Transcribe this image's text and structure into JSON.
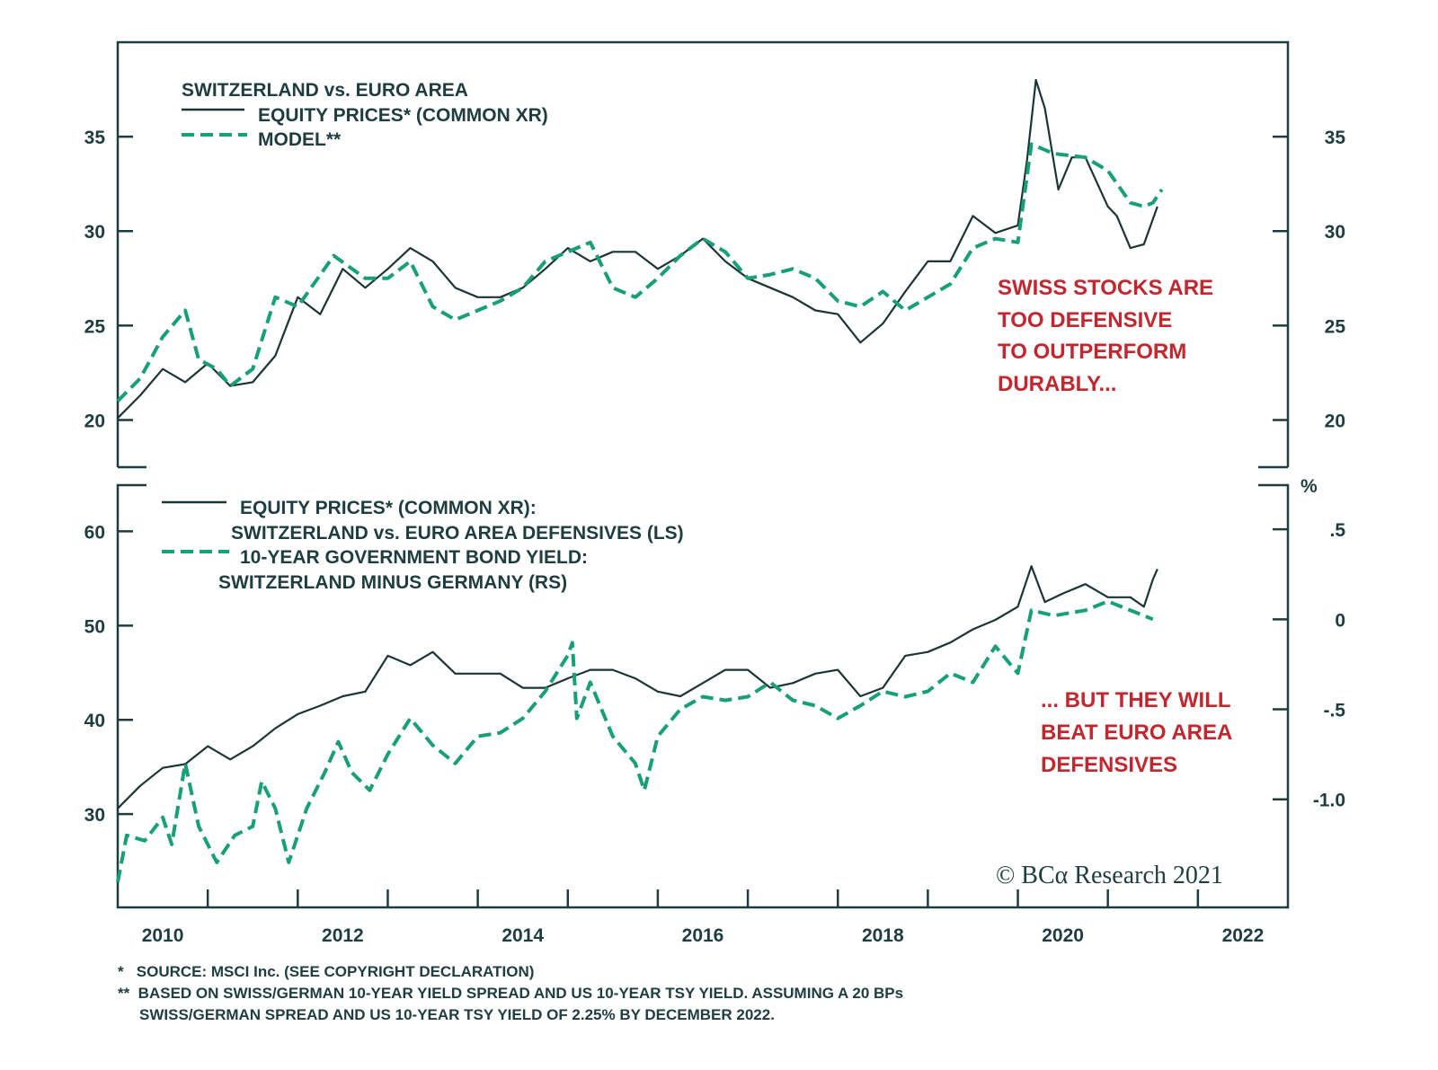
{
  "colors": {
    "axis": "#1e3d40",
    "equity": "#1b3436",
    "model": "#17a078",
    "annotation": "#c4262e"
  },
  "chart_data": [
    {
      "type": "line",
      "panel": "top",
      "legend_title": "SWITZERLAND vs. EURO AREA",
      "legend": [
        "EQUITY PRICES* (COMMON XR)",
        "MODEL**"
      ],
      "ylim": [
        17.5,
        40
      ],
      "yticks": [
        20,
        25,
        30,
        35
      ],
      "ytick_labels": [
        "20",
        "25",
        "30",
        "35"
      ],
      "annotation": [
        "SWISS STOCKS ARE",
        "TOO DEFENSIVE",
        "TO OUTPERFORM",
        "DURABLY..."
      ],
      "series": [
        {
          "name": "EQUITY PRICES* (COMMON XR)",
          "style": "solid",
          "axis": "left",
          "x": [
            2010.0,
            2010.25,
            2010.5,
            2010.75,
            2011.0,
            2011.25,
            2011.5,
            2011.75,
            2012.0,
            2012.25,
            2012.5,
            2012.75,
            2013.0,
            2013.25,
            2013.5,
            2013.75,
            2014.0,
            2014.25,
            2014.5,
            2014.75,
            2015.0,
            2015.25,
            2015.5,
            2015.75,
            2016.0,
            2016.25,
            2016.5,
            2016.75,
            2017.0,
            2017.25,
            2017.5,
            2017.75,
            2018.0,
            2018.25,
            2018.5,
            2018.75,
            2019.0,
            2019.25,
            2019.5,
            2019.75,
            2020.0,
            2020.1,
            2020.2,
            2020.3,
            2020.45,
            2020.6,
            2020.75,
            2021.0,
            2021.1,
            2021.25,
            2021.4,
            2021.55
          ],
          "y": [
            20.1,
            21.3,
            22.7,
            22.0,
            23.0,
            21.8,
            22.0,
            23.4,
            26.5,
            25.6,
            28.0,
            27.0,
            28.0,
            29.1,
            28.4,
            27.0,
            26.5,
            26.5,
            27.0,
            28.0,
            29.1,
            28.4,
            28.9,
            28.9,
            28.0,
            28.7,
            29.6,
            28.4,
            27.5,
            27.0,
            26.5,
            25.8,
            25.6,
            24.1,
            25.1,
            26.8,
            28.4,
            28.4,
            30.8,
            29.9,
            30.3,
            33.7,
            38.0,
            36.5,
            32.2,
            33.9,
            33.9,
            31.3,
            30.8,
            29.1,
            29.3,
            31.3
          ]
        },
        {
          "name": "MODEL**",
          "style": "dashed",
          "axis": "left",
          "x": [
            2010.0,
            2010.25,
            2010.5,
            2010.75,
            2010.9,
            2011.1,
            2011.25,
            2011.5,
            2011.75,
            2012.0,
            2012.4,
            2012.75,
            2013.0,
            2013.25,
            2013.5,
            2013.75,
            2014.0,
            2014.25,
            2014.5,
            2014.75,
            2015.0,
            2015.25,
            2015.5,
            2015.75,
            2016.0,
            2016.25,
            2016.5,
            2016.75,
            2017.0,
            2017.25,
            2017.5,
            2017.75,
            2018.0,
            2018.25,
            2018.5,
            2018.75,
            2019.0,
            2019.25,
            2019.5,
            2019.75,
            2020.0,
            2020.15,
            2020.4,
            2020.75,
            2021.0,
            2021.25,
            2021.4,
            2021.5,
            2021.6
          ],
          "y": [
            21.0,
            22.2,
            24.4,
            25.8,
            23.2,
            22.7,
            21.8,
            22.7,
            26.5,
            26.0,
            28.7,
            27.5,
            27.5,
            28.4,
            26.0,
            25.3,
            25.8,
            26.3,
            27.0,
            28.4,
            28.9,
            29.4,
            27.0,
            26.5,
            27.5,
            28.7,
            29.6,
            28.9,
            27.5,
            27.7,
            28.0,
            27.5,
            26.3,
            26.0,
            26.8,
            25.8,
            26.5,
            27.2,
            29.1,
            29.6,
            29.4,
            34.6,
            34.1,
            33.9,
            33.2,
            31.5,
            31.3,
            31.5,
            32.2
          ]
        }
      ]
    },
    {
      "type": "line",
      "panel": "bottom",
      "legend": [
        "EQUITY PRICES* (COMMON XR):",
        "SWITZERLAND vs. EURO AREA DEFENSIVES (LS)",
        "10-YEAR GOVERNMENT BOND YIELD:",
        "SWITZERLAND MINUS GERMANY (RS)"
      ],
      "ylim_left": [
        20.1,
        64.9
      ],
      "ylim_right": [
        -1.6,
        0.745
      ],
      "yticks_left": [
        30,
        40,
        50,
        60
      ],
      "ytick_labels_left": [
        "30",
        "40",
        "50",
        "60"
      ],
      "yticks_right": [
        -1.0,
        -0.5,
        0,
        0.5
      ],
      "ytick_labels_right": [
        "-1.0",
        "-.5",
        "0",
        ".5"
      ],
      "right_unit": "%",
      "annotation": [
        "... BUT THEY WILL",
        "BEAT EURO AREA",
        "DEFENSIVES"
      ],
      "series": [
        {
          "name": "SWITZERLAND vs. EURO AREA DEFENSIVES (LS)",
          "style": "solid",
          "axis": "left",
          "x": [
            2010.0,
            2010.25,
            2010.5,
            2010.75,
            2011.0,
            2011.25,
            2011.5,
            2011.75,
            2012.0,
            2012.25,
            2012.5,
            2012.75,
            2013.0,
            2013.25,
            2013.5,
            2013.75,
            2014.0,
            2014.25,
            2014.5,
            2014.75,
            2015.0,
            2015.25,
            2015.5,
            2015.75,
            2016.0,
            2016.25,
            2016.5,
            2016.75,
            2017.0,
            2017.25,
            2017.5,
            2017.75,
            2018.0,
            2018.25,
            2018.5,
            2018.75,
            2019.0,
            2019.25,
            2019.5,
            2019.75,
            2020.0,
            2020.15,
            2020.3,
            2020.5,
            2020.75,
            2021.0,
            2021.25,
            2021.4,
            2021.5,
            2021.55
          ],
          "y": [
            30.6,
            33.0,
            34.9,
            35.3,
            37.2,
            35.8,
            37.2,
            39.1,
            40.6,
            41.5,
            42.5,
            43.0,
            46.8,
            45.8,
            47.2,
            44.9,
            44.9,
            44.9,
            43.4,
            43.4,
            44.4,
            45.3,
            45.3,
            44.4,
            43.0,
            42.5,
            43.9,
            45.3,
            45.3,
            43.4,
            43.9,
            44.9,
            45.3,
            42.5,
            43.4,
            46.8,
            47.2,
            48.2,
            49.6,
            50.6,
            52.0,
            56.3,
            52.5,
            53.4,
            54.4,
            53.0,
            53.0,
            52.0,
            54.9,
            56.0
          ]
        },
        {
          "name": "SWITZERLAND MINUS GERMANY (RS)",
          "style": "dashed",
          "axis": "right",
          "x": [
            2010.0,
            2010.1,
            2010.3,
            2010.5,
            2010.6,
            2010.75,
            2010.9,
            2011.1,
            2011.3,
            2011.5,
            2011.6,
            2011.75,
            2011.9,
            2012.1,
            2012.3,
            2012.45,
            2012.6,
            2012.8,
            2013.0,
            2013.25,
            2013.5,
            2013.75,
            2014.0,
            2014.25,
            2014.5,
            2014.75,
            2015.0,
            2015.05,
            2015.1,
            2015.25,
            2015.5,
            2015.75,
            2015.85,
            2016.0,
            2016.25,
            2016.5,
            2016.75,
            2017.0,
            2017.25,
            2017.5,
            2017.75,
            2018.0,
            2018.25,
            2018.5,
            2018.75,
            2019.0,
            2019.25,
            2019.5,
            2019.75,
            2020.0,
            2020.15,
            2020.4,
            2020.75,
            2021.0,
            2021.25,
            2021.5
          ],
          "y": [
            -1.46,
            -1.2,
            -1.23,
            -1.1,
            -1.25,
            -0.8,
            -1.15,
            -1.35,
            -1.2,
            -1.15,
            -0.9,
            -1.05,
            -1.35,
            -1.05,
            -0.85,
            -0.68,
            -0.85,
            -0.95,
            -0.75,
            -0.55,
            -0.7,
            -0.8,
            -0.65,
            -0.63,
            -0.55,
            -0.4,
            -0.2,
            -0.13,
            -0.55,
            -0.35,
            -0.65,
            -0.8,
            -0.95,
            -0.65,
            -0.5,
            -0.43,
            -0.45,
            -0.43,
            -0.35,
            -0.45,
            -0.48,
            -0.55,
            -0.48,
            -0.4,
            -0.43,
            -0.4,
            -0.3,
            -0.35,
            -0.15,
            -0.3,
            0.05,
            0.02,
            0.05,
            0.1,
            0.05,
            0.0
          ]
        }
      ]
    }
  ],
  "x_axis": {
    "xlim": [
      2010,
      2023
    ],
    "tick_labels": [
      "2010",
      "2012",
      "2014",
      "2016",
      "2018",
      "2020",
      "2022"
    ]
  },
  "logo": "© BCα Research 2021",
  "footnotes": [
    "*   SOURCE: MSCI Inc. (SEE COPYRIGHT DECLARATION)",
    "**  BASED ON SWISS/GERMAN 10-YEAR YIELD SPREAD AND US 10-YEAR TSY YIELD. ASSUMING A 20 BPs",
    "SWISS/GERMAN SPREAD AND US 10-YEAR TSY YIELD OF 2.25% BY DECEMBER 2022."
  ]
}
